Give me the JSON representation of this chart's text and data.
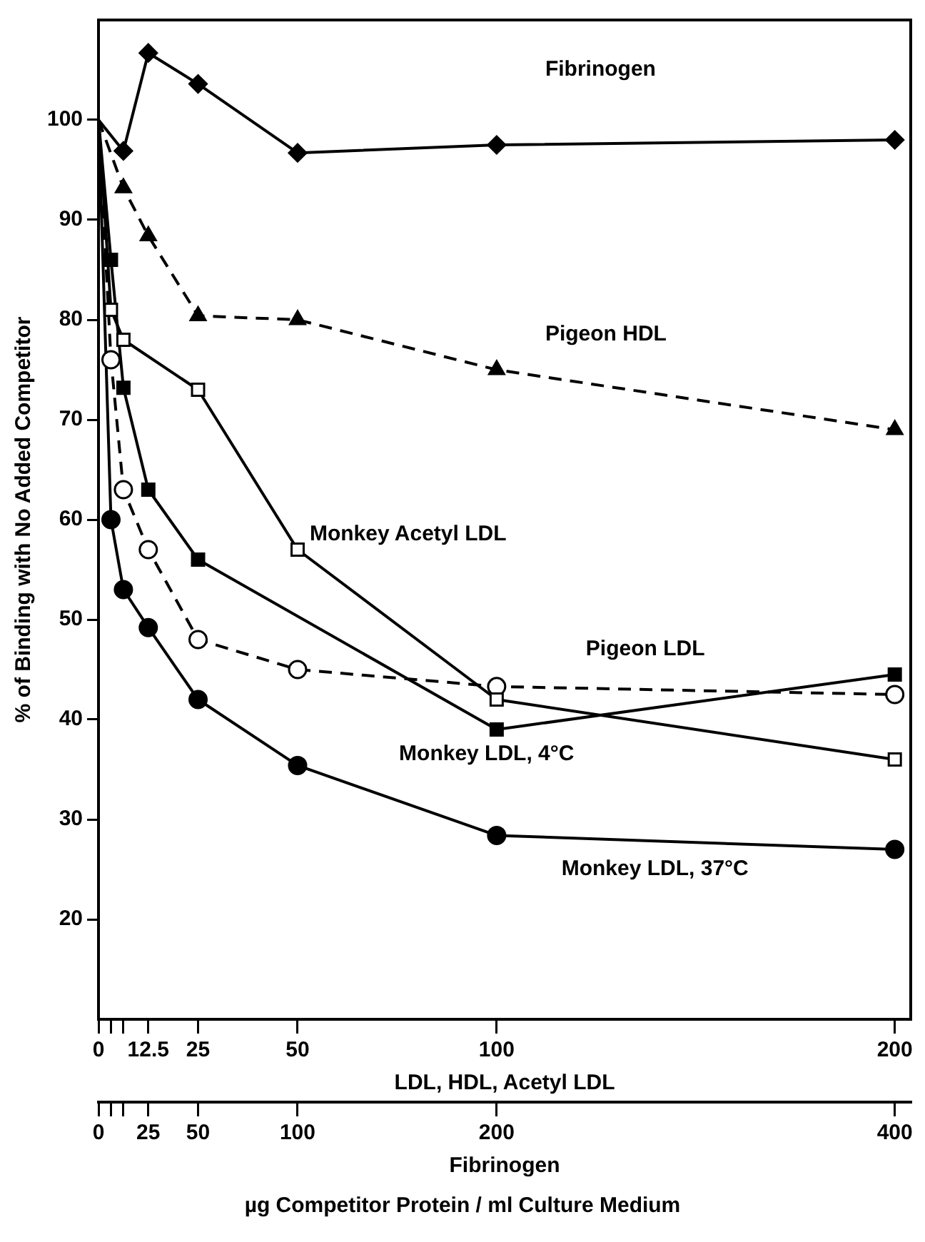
{
  "chart_data": {
    "type": "line",
    "xlabel": "LDL, HDL, Acetyl LDL",
    "x2label": "Fibrinogen",
    "ylabel": "% of Binding with No Added Competitor",
    "annotations": [
      "µg Competitor Protein / ml Culture Medium"
    ],
    "xlim": [
      0,
      204
    ],
    "xticks": [
      0,
      {
        "value": 3.125,
        "label": null
      },
      {
        "value": 6.25,
        "label": null
      },
      12.5,
      25,
      50,
      100,
      200
    ],
    "x2lim": [
      0,
      408
    ],
    "x2ticks": [
      0,
      {
        "value": 6.25,
        "label": null
      },
      {
        "value": 12.5,
        "label": null
      },
      25,
      50,
      100,
      200,
      400
    ],
    "ylim": [
      10,
      110
    ],
    "yticks": [
      20,
      30,
      40,
      50,
      60,
      70,
      80,
      90,
      100
    ],
    "grid": false,
    "legend": false,
    "series": [
      {
        "name": "Fibrinogen",
        "color": "#000000",
        "marker": "diamond",
        "line_style": "solid",
        "axis": "x2",
        "x": [
          0,
          12.5,
          25,
          50,
          100,
          200,
          400
        ],
        "values": [
          100,
          96.9,
          106.7,
          103.6,
          96.7,
          97.5,
          98
        ]
      },
      {
        "name": "Pigeon HDL",
        "color": "#000000",
        "marker": "triangle",
        "line_style": "dashed",
        "x": [
          0,
          6.25,
          12.5,
          25,
          50,
          100,
          200
        ],
        "values": [
          100,
          93.2,
          88.4,
          80.4,
          80,
          75,
          69
        ]
      },
      {
        "name": "Monkey Acetyl LDL",
        "color": "#000000",
        "marker": "square",
        "line_style": "solid",
        "x": [
          0,
          3.125,
          6.25,
          25,
          50,
          100,
          200
        ],
        "values": [
          100,
          81,
          78,
          73,
          57,
          42,
          36
        ]
      },
      {
        "name": "Pigeon LDL",
        "color": "#000000",
        "marker": "circle",
        "line_style": "dashed",
        "x": [
          0,
          3.125,
          6.25,
          12.5,
          25,
          50,
          100,
          200
        ],
        "values": [
          100,
          76,
          63,
          57,
          48,
          45,
          43.3,
          42.5
        ]
      },
      {
        "name": "Monkey LDL, 4°C",
        "color": "#000000",
        "marker": "square",
        "line_style": "solid",
        "x": [
          0,
          3.125,
          6.25,
          12.5,
          25,
          100,
          200
        ],
        "values": [
          100,
          86,
          73.2,
          63,
          56,
          39,
          44.5
        ]
      },
      {
        "name": "Monkey LDL, 37°C",
        "color": "#000000",
        "marker": "circle",
        "line_style": "solid",
        "x": [
          0,
          3.125,
          6.25,
          12.5,
          25,
          50,
          100,
          200
        ],
        "values": [
          100,
          60,
          53,
          49.2,
          42,
          35.4,
          28.4,
          27
        ]
      }
    ]
  }
}
